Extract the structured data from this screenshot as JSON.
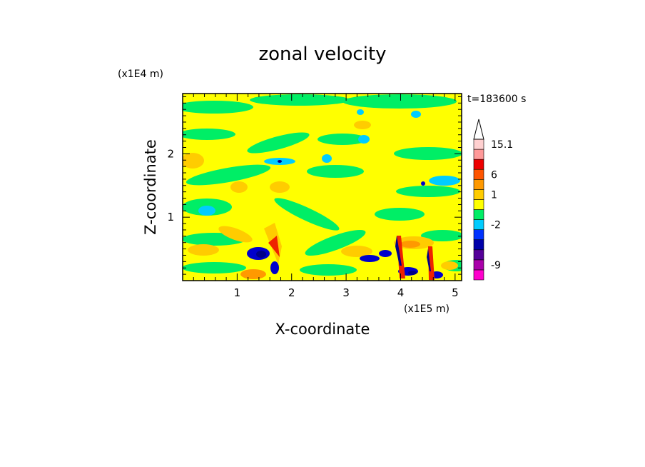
{
  "chart_data": {
    "type": "heatmap",
    "title": "zonal velocity",
    "xlabel": "X-coordinate",
    "ylabel": "Z-coordinate",
    "x_unit": "(x1E5 m)",
    "y_unit": "(x1E4 m)",
    "time_label": "t=183600 s",
    "x_ticks": [
      "1",
      "2",
      "3",
      "4",
      "5"
    ],
    "y_ticks": [
      "1",
      "2"
    ],
    "xlim": [
      0,
      5.12
    ],
    "ylim": [
      0,
      2.95
    ],
    "grid": false,
    "colorbar": {
      "labels": [
        "15.1",
        "6",
        "1",
        "-2",
        "-9"
      ],
      "levels": [
        {
          "color": "#ff00cc"
        },
        {
          "color": "#aa00aa"
        },
        {
          "color": "#550099"
        },
        {
          "color": "#0000aa"
        },
        {
          "color": "#0033ff"
        },
        {
          "color": "#00ccff"
        },
        {
          "color": "#00ee66"
        },
        {
          "color": "#ffff00"
        },
        {
          "color": "#ffcc00"
        },
        {
          "color": "#ff9900"
        },
        {
          "color": "#ff5500"
        },
        {
          "color": "#ee0000"
        },
        {
          "color": "#ff9999"
        },
        {
          "color": "#ffd0d0"
        }
      ],
      "label_level_index": [
        13,
        10,
        8,
        5,
        1
      ]
    },
    "field_colors": {
      "background": "#ffff00",
      "green": "#00ee66",
      "cyan": "#00ccff",
      "orange": "#ffcc00",
      "deep_orange": "#ff9900",
      "red": "#ee2200",
      "blue": "#0000cc",
      "navy": "#000088"
    }
  }
}
